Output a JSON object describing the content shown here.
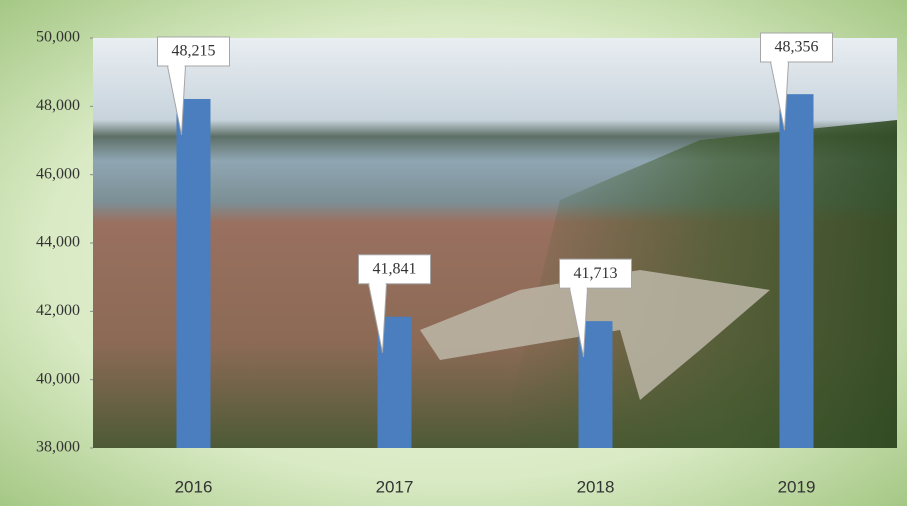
{
  "chart_data": {
    "type": "bar",
    "categories": [
      "2016",
      "2017",
      "2018",
      "2019"
    ],
    "values": [
      48215,
      41841,
      41713,
      48356
    ],
    "value_labels": [
      "48,215",
      "41,841",
      "41,713",
      "48,356"
    ],
    "color": "#4a7ebf",
    "ylim": [
      38000,
      50000
    ],
    "yticks": [
      {
        "value": 38000,
        "label": "38,000"
      },
      {
        "value": 40000,
        "label": "40,000"
      },
      {
        "value": 42000,
        "label": "42,000"
      },
      {
        "value": 44000,
        "label": "44,000"
      },
      {
        "value": 46000,
        "label": "46,000"
      },
      {
        "value": 48000,
        "label": "48,000"
      },
      {
        "value": 50000,
        "label": "50,000"
      }
    ]
  }
}
